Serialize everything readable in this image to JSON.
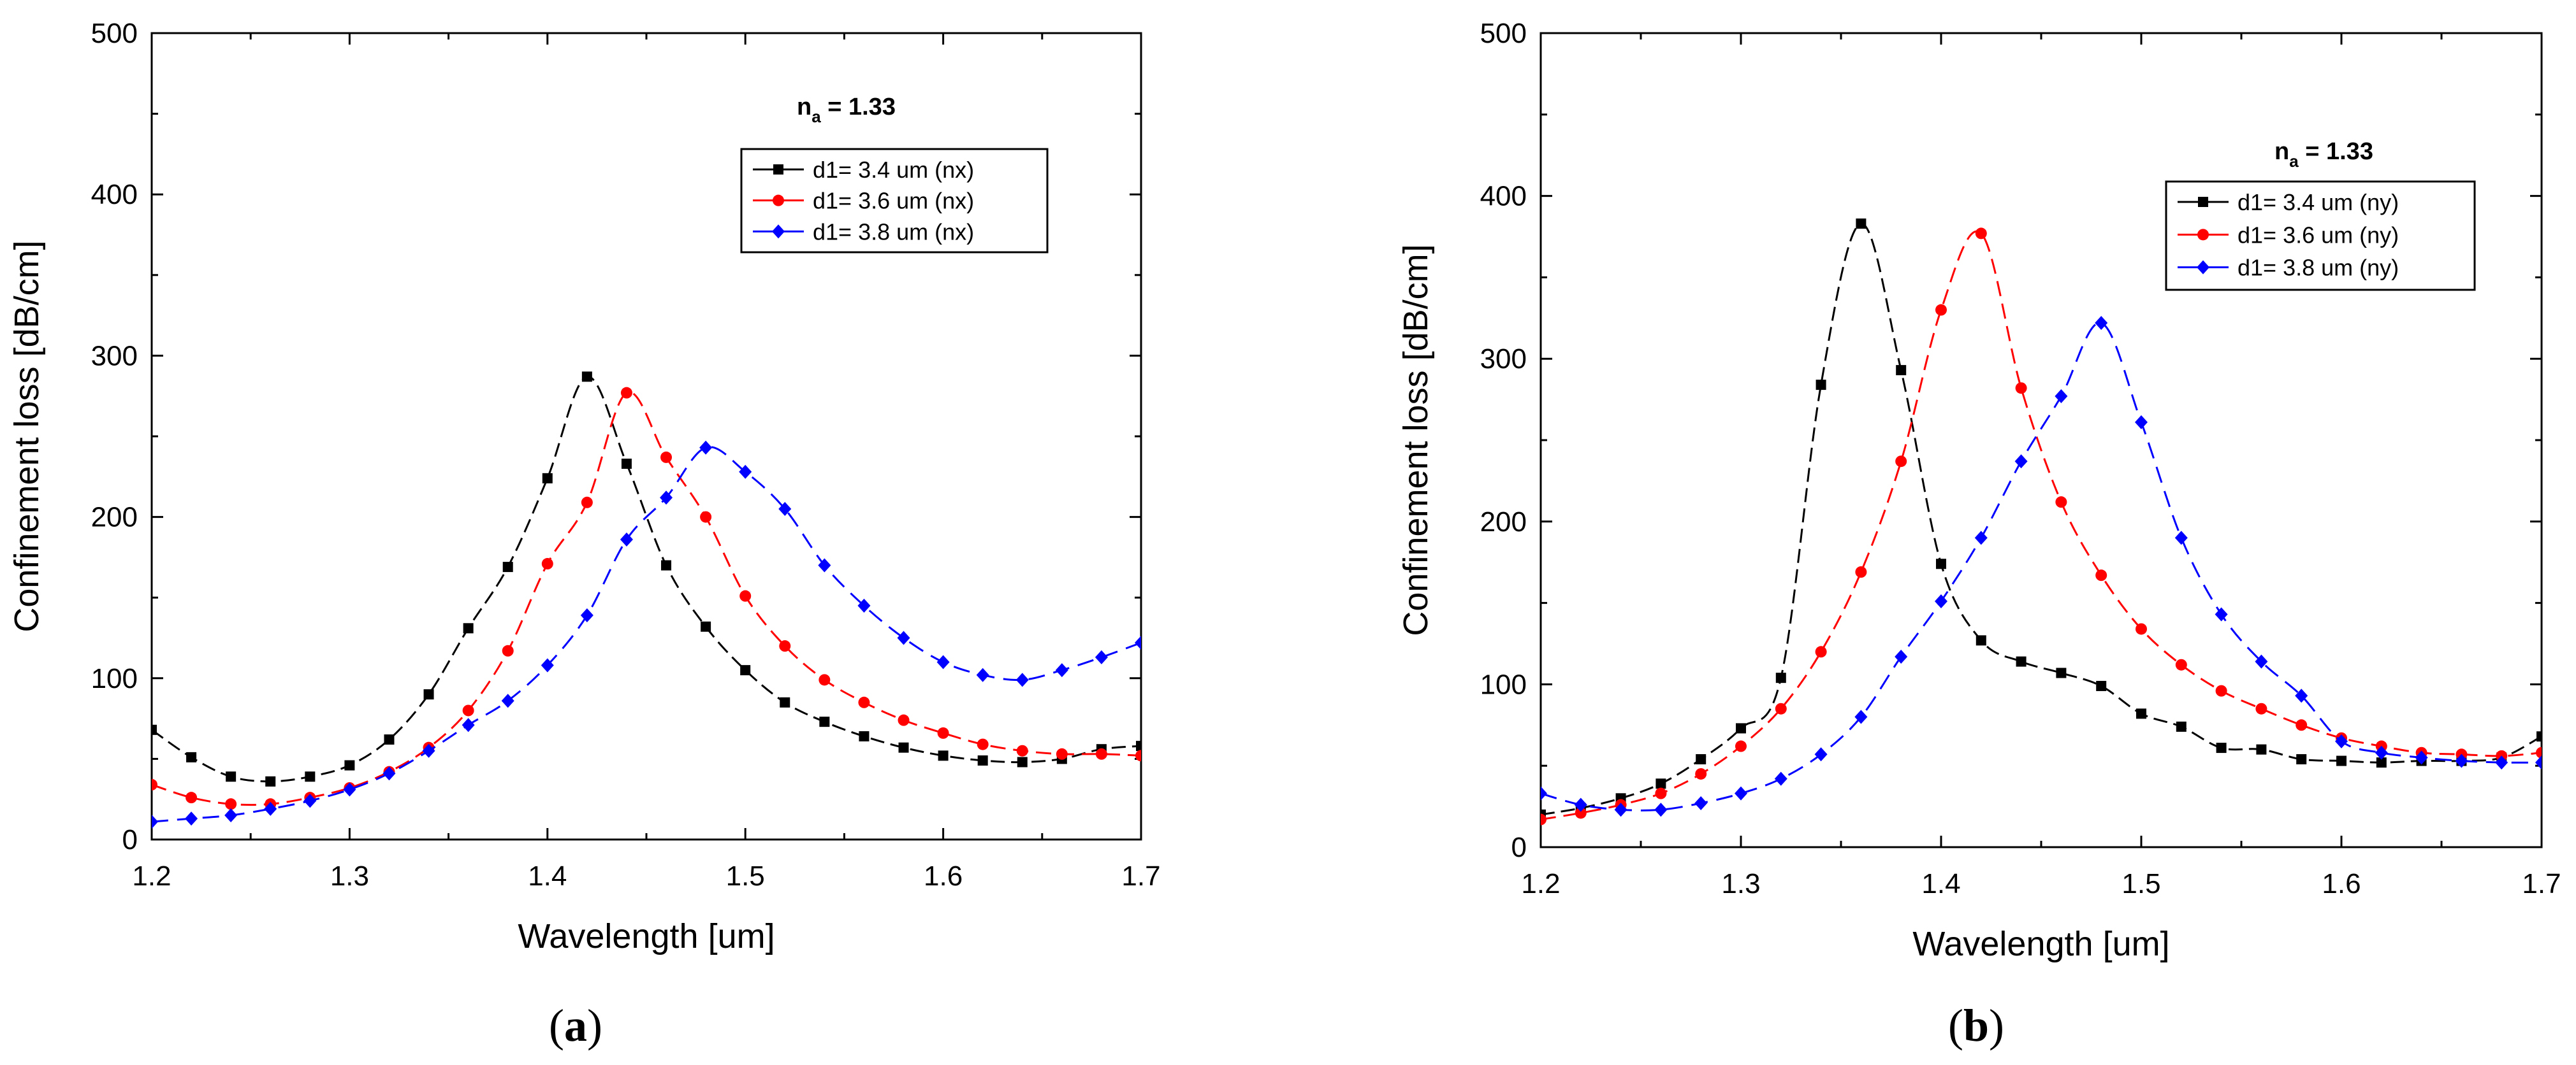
{
  "chart_data": [
    {
      "type": "line",
      "panel_label": "a",
      "title": "",
      "xlabel": "Wavelength [um]",
      "ylabel": "Confinement loss [dB/cm]",
      "xlim": [
        1.2,
        1.7
      ],
      "ylim": [
        0,
        500
      ],
      "x_ticks": [
        "1.2",
        "1.3",
        "1.4",
        "1.5",
        "1.6",
        "1.7"
      ],
      "y_ticks": [
        "0",
        "100",
        "200",
        "300",
        "400",
        "500"
      ],
      "annotation": {
        "base": "n",
        "sub": "a",
        "rest": " = 1.33"
      },
      "grid": false,
      "legend_position": "top-right",
      "series": [
        {
          "name": "d1= 3.4 um (nx)",
          "color": "#000000",
          "marker": "square",
          "x": [
            1.2,
            1.22,
            1.24,
            1.26,
            1.28,
            1.3,
            1.32,
            1.34,
            1.36,
            1.38,
            1.4,
            1.42,
            1.44,
            1.46,
            1.48,
            1.5,
            1.52,
            1.54,
            1.56,
            1.58,
            1.6,
            1.62,
            1.64,
            1.66,
            1.68,
            1.7
          ],
          "y": [
            68,
            51,
            39,
            36,
            39,
            46,
            62,
            90,
            131,
            169,
            224,
            287,
            233,
            170,
            132,
            105,
            85,
            73,
            64,
            57,
            52,
            49,
            48,
            50,
            56,
            58
          ]
        },
        {
          "name": "d1= 3.6 um (nx)",
          "color": "#ff0000",
          "marker": "circle",
          "x": [
            1.2,
            1.22,
            1.24,
            1.26,
            1.28,
            1.3,
            1.32,
            1.34,
            1.36,
            1.38,
            1.4,
            1.42,
            1.44,
            1.46,
            1.48,
            1.5,
            1.52,
            1.54,
            1.56,
            1.58,
            1.6,
            1.62,
            1.64,
            1.66,
            1.68,
            1.7
          ],
          "y": [
            34,
            26,
            22,
            22,
            26,
            32,
            42,
            57,
            80,
            117,
            171,
            209,
            277,
            237,
            200,
            151,
            120,
            99,
            85,
            74,
            66,
            59,
            55,
            53,
            53,
            52
          ]
        },
        {
          "name": "d1= 3.8 um (nx)",
          "color": "#0000ff",
          "marker": "diamond",
          "x": [
            1.2,
            1.22,
            1.24,
            1.26,
            1.28,
            1.3,
            1.32,
            1.34,
            1.36,
            1.38,
            1.4,
            1.42,
            1.44,
            1.46,
            1.48,
            1.5,
            1.52,
            1.54,
            1.56,
            1.58,
            1.6,
            1.62,
            1.64,
            1.66,
            1.68,
            1.7
          ],
          "y": [
            11,
            13,
            15,
            19,
            24,
            31,
            41,
            55,
            71,
            86,
            108,
            139,
            186,
            212,
            243,
            228,
            205,
            170,
            145,
            125,
            110,
            102,
            99,
            105,
            113,
            122
          ]
        }
      ]
    },
    {
      "type": "line",
      "panel_label": "b",
      "title": "",
      "xlabel": "Wavelength [um]",
      "ylabel": "Confinement loss [dB/cm]",
      "xlim": [
        1.2,
        1.7
      ],
      "ylim": [
        0,
        500
      ],
      "x_ticks": [
        "1.2",
        "1.3",
        "1.4",
        "1.5",
        "1.6",
        "1.7"
      ],
      "y_ticks": [
        "0",
        "100",
        "200",
        "300",
        "400",
        "500"
      ],
      "annotation": {
        "base": "n",
        "sub": "a",
        "rest": " = 1.33"
      },
      "grid": false,
      "legend_position": "top-right",
      "series": [
        {
          "name": "d1= 3.4 um (ny)",
          "color": "#000000",
          "marker": "square",
          "x": [
            1.2,
            1.22,
            1.24,
            1.26,
            1.28,
            1.3,
            1.32,
            1.34,
            1.36,
            1.38,
            1.4,
            1.42,
            1.44,
            1.46,
            1.48,
            1.5,
            1.52,
            1.54,
            1.56,
            1.58,
            1.6,
            1.62,
            1.64,
            1.66,
            1.68,
            1.7
          ],
          "y": [
            20,
            24,
            30,
            39,
            54,
            73,
            104,
            284,
            383,
            293,
            174,
            127,
            114,
            107,
            99,
            82,
            74,
            61,
            60,
            54,
            53,
            52,
            53,
            53,
            55,
            68
          ]
        },
        {
          "name": "d1= 3.6 um (ny)",
          "color": "#ff0000",
          "marker": "circle",
          "x": [
            1.2,
            1.22,
            1.24,
            1.26,
            1.28,
            1.3,
            1.32,
            1.34,
            1.36,
            1.38,
            1.4,
            1.42,
            1.44,
            1.46,
            1.48,
            1.5,
            1.52,
            1.54,
            1.56,
            1.58,
            1.6,
            1.62,
            1.64,
            1.66,
            1.68,
            1.7
          ],
          "y": [
            17,
            21,
            26,
            33,
            45,
            62,
            85,
            120,
            169,
            237,
            330,
            377,
            282,
            212,
            167,
            134,
            112,
            96,
            85,
            75,
            67,
            62,
            58,
            57,
            56,
            58
          ]
        },
        {
          "name": "d1= 3.8 um (ny)",
          "color": "#0000ff",
          "marker": "diamond",
          "x": [
            1.2,
            1.22,
            1.24,
            1.26,
            1.28,
            1.3,
            1.32,
            1.34,
            1.36,
            1.38,
            1.4,
            1.42,
            1.44,
            1.46,
            1.48,
            1.5,
            1.52,
            1.54,
            1.56,
            1.58,
            1.6,
            1.62,
            1.64,
            1.66,
            1.68,
            1.7
          ],
          "y": [
            33,
            26,
            23,
            23,
            27,
            33,
            42,
            57,
            80,
            117,
            151,
            190,
            237,
            277,
            322,
            261,
            190,
            143,
            114,
            93,
            65,
            58,
            55,
            53,
            52,
            52
          ]
        }
      ]
    }
  ]
}
